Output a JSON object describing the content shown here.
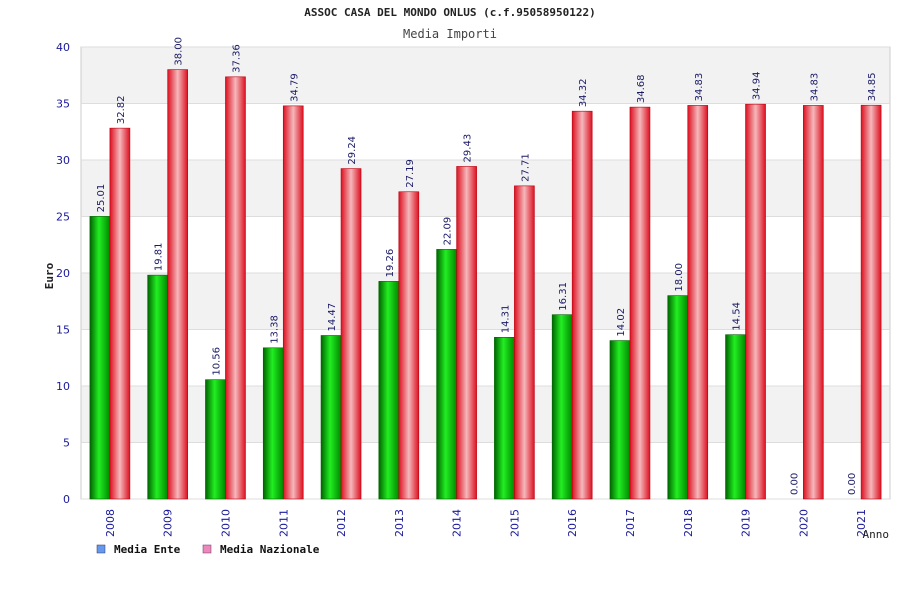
{
  "chart_data": {
    "type": "bar",
    "title": "ASSOC CASA DEL MONDO ONLUS (c.f.95058950122)",
    "subtitle": "Media Importi",
    "xlabel": "Anno",
    "ylabel": "Euro",
    "ylim": [
      0,
      40
    ],
    "yticks": [
      0,
      5,
      10,
      15,
      20,
      25,
      30,
      35,
      40
    ],
    "grid": true,
    "legend_position": "bottom-left",
    "categories": [
      "2008",
      "2009",
      "2010",
      "2011",
      "2012",
      "2013",
      "2014",
      "2015",
      "2016",
      "2017",
      "2018",
      "2019",
      "2020",
      "2021"
    ],
    "series": [
      {
        "name": "Media Ente",
        "color": "#00b400",
        "legend_color": "#6699ee",
        "values": [
          25.01,
          19.81,
          10.56,
          13.38,
          14.47,
          19.26,
          22.09,
          14.31,
          16.31,
          14.02,
          18.0,
          14.54,
          0.0,
          0.0
        ],
        "labels": [
          "25.01",
          "19.81",
          "10.56",
          "13.38",
          "14.47",
          "19.26",
          "22.09",
          "14.31",
          "16.31",
          "14.02",
          "18.00",
          "14.54",
          "0.00",
          "0.00"
        ]
      },
      {
        "name": "Media Nazionale",
        "color": "#e8303a",
        "legend_color": "#ee88bb",
        "values": [
          32.82,
          38.0,
          37.36,
          34.79,
          29.24,
          27.19,
          29.43,
          27.71,
          34.32,
          34.68,
          34.83,
          34.94,
          34.83,
          34.85
        ],
        "labels": [
          "32.82",
          "38.00",
          "37.36",
          "34.79",
          "29.24",
          "27.19",
          "29.43",
          "27.71",
          "34.32",
          "34.68",
          "34.83",
          "34.94",
          "34.83",
          "34.85"
        ]
      }
    ]
  }
}
